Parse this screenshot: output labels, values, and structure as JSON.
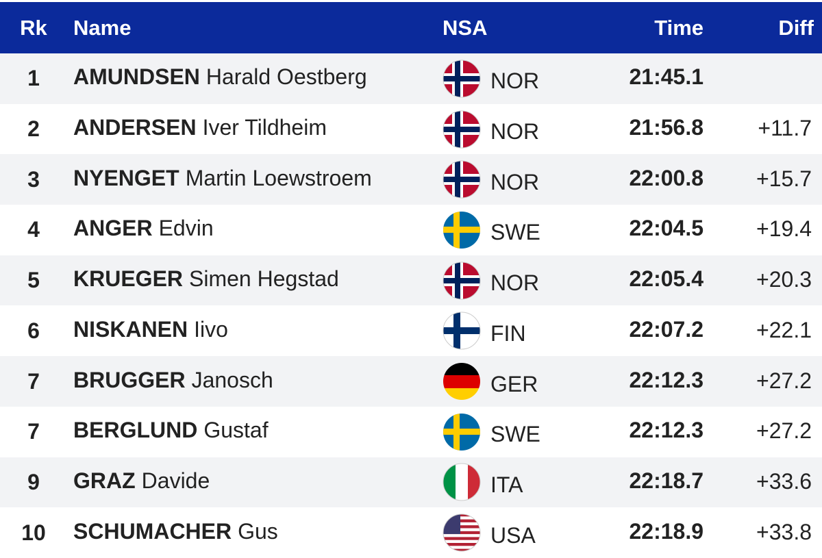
{
  "table": {
    "header": [
      "Rk",
      "Name",
      "NSA",
      "Time",
      "Diff"
    ],
    "rows": [
      {
        "rank": 1,
        "surname": "AMUNDSEN",
        "given": "Harald Oestberg",
        "nsa": "NOR",
        "time": "21:45.1",
        "diff": null
      },
      {
        "rank": 2,
        "surname": "ANDERSEN",
        "given": "Iver Tildheim",
        "nsa": "NOR",
        "time": "21:56.8",
        "diff": "+11.7"
      },
      {
        "rank": 3,
        "surname": "NYENGET",
        "given": "Martin Loewstroem",
        "nsa": "NOR",
        "time": "22:00.8",
        "diff": "+15.7"
      },
      {
        "rank": 4,
        "surname": "ANGER",
        "given": "Edvin",
        "nsa": "SWE",
        "time": "22:04.5",
        "diff": "+19.4"
      },
      {
        "rank": 5,
        "surname": "KRUEGER",
        "given": "Simen Hegstad",
        "nsa": "NOR",
        "time": "22:05.4",
        "diff": "+20.3"
      },
      {
        "rank": 6,
        "surname": "NISKANEN",
        "given": "Iivo",
        "nsa": "FIN",
        "time": "22:07.2",
        "diff": "+22.1"
      },
      {
        "rank": 7,
        "surname": "BRUGGER",
        "given": "Janosch",
        "nsa": "GER",
        "time": "22:12.3",
        "diff": "+27.2"
      },
      {
        "rank": 7,
        "surname": "BERGLUND",
        "given": "Gustaf",
        "nsa": "SWE",
        "time": "22:12.3",
        "diff": "+27.2"
      },
      {
        "rank": 9,
        "surname": "GRAZ",
        "given": "Davide",
        "nsa": "ITA",
        "time": "22:18.7",
        "diff": "+33.6"
      },
      {
        "rank": 10,
        "surname": "SCHUMACHER",
        "given": "Gus",
        "nsa": "USA",
        "time": "22:18.9",
        "diff": "+33.8"
      }
    ]
  }
}
